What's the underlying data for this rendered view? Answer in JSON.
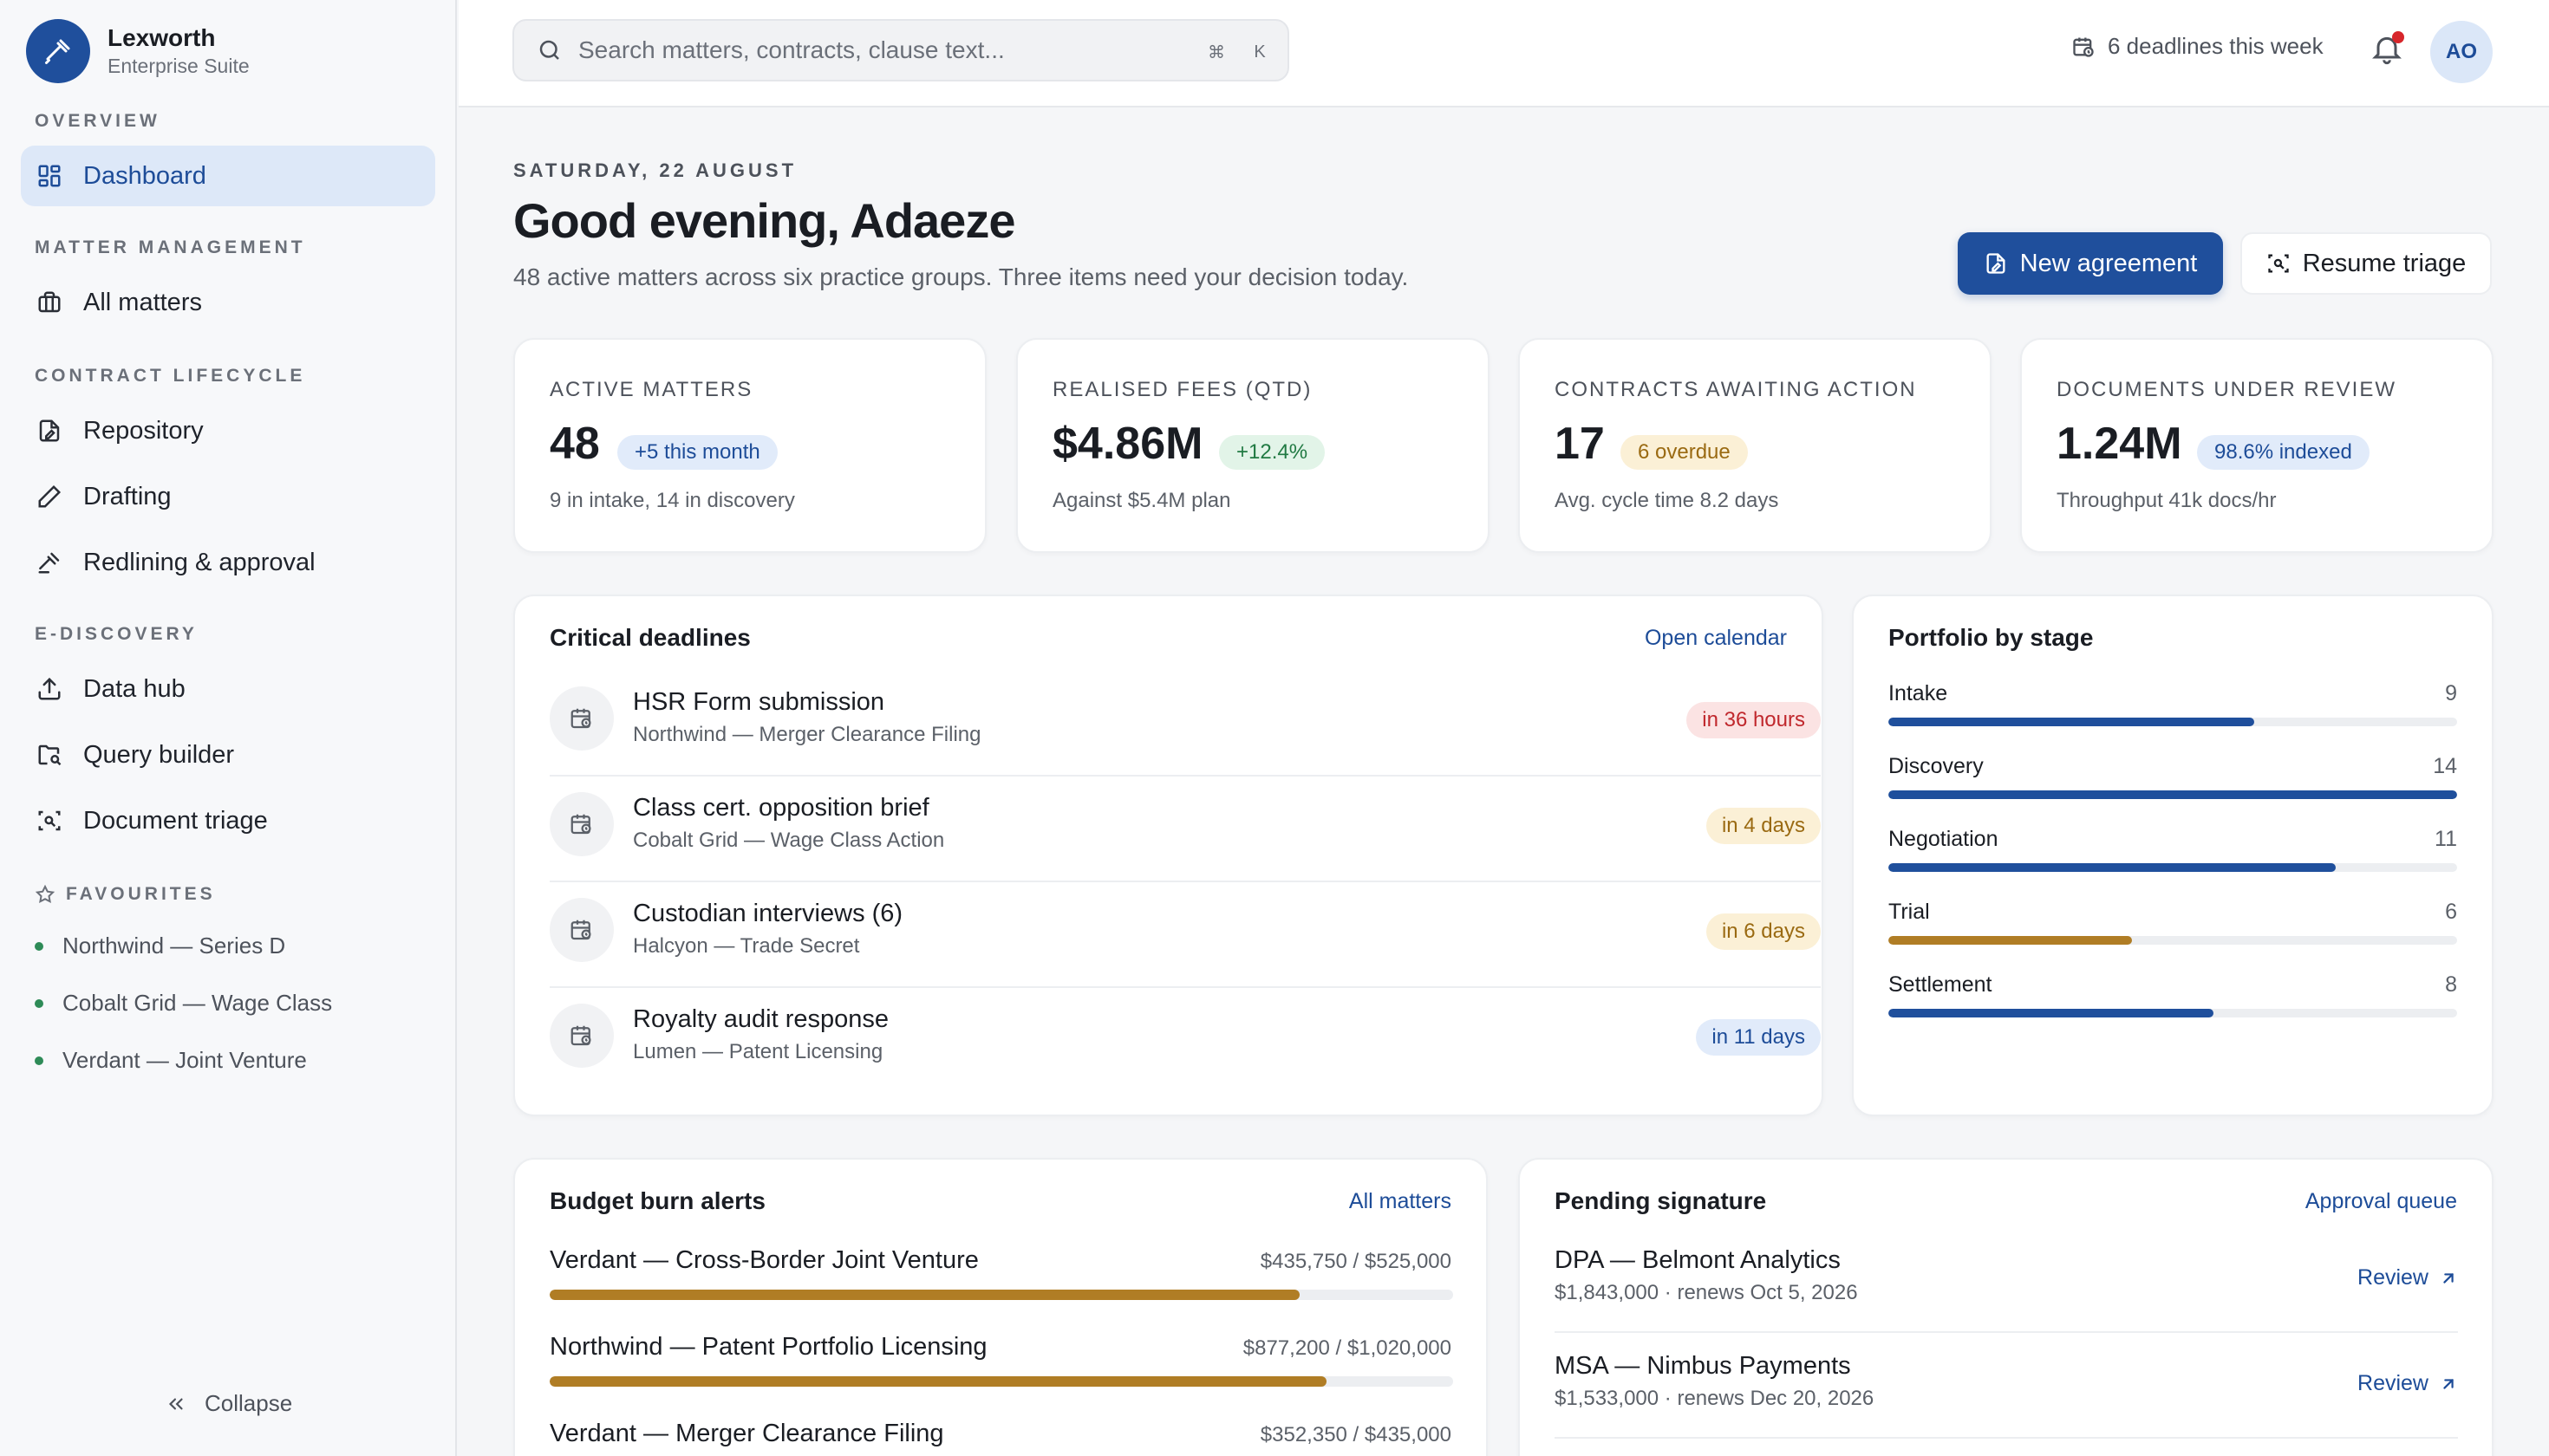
{
  "brand": {
    "name": "Lexworth",
    "subtitle": "Enterprise Suite"
  },
  "sidebar": {
    "sections": [
      {
        "label": "OVERVIEW",
        "items": [
          {
            "label": "Dashboard",
            "icon": "grid-icon",
            "active": true
          }
        ]
      },
      {
        "label": "MATTER MANAGEMENT",
        "items": [
          {
            "label": "All matters",
            "icon": "briefcase-icon"
          }
        ]
      },
      {
        "label": "CONTRACT LIFECYCLE",
        "items": [
          {
            "label": "Repository",
            "icon": "file-edit-icon"
          },
          {
            "label": "Drafting",
            "icon": "pen-icon"
          },
          {
            "label": "Redlining & approval",
            "icon": "gavel-icon"
          }
        ]
      },
      {
        "label": "E-DISCOVERY",
        "items": [
          {
            "label": "Data hub",
            "icon": "upload-icon"
          },
          {
            "label": "Query builder",
            "icon": "folder-search-icon"
          },
          {
            "label": "Document triage",
            "icon": "scan-icon"
          }
        ]
      }
    ],
    "favourites_label": "FAVOURITES",
    "favourites": [
      "Northwind — Series D",
      "Cobalt Grid — Wage Class",
      "Verdant — Joint Venture"
    ],
    "collapse_label": "Collapse"
  },
  "topbar": {
    "search_placeholder": "Search matters, contracts, clause text...",
    "kbd_cmd": "⌘",
    "kbd_key": "K",
    "deadlines_label": "6 deadlines this week",
    "avatar_initials": "AO"
  },
  "header": {
    "date": "SATURDAY, 22 AUGUST",
    "greeting": "Good evening, Adaeze",
    "subtitle": "48 active matters across six practice groups. Three items need your decision today.",
    "primary_button": "New agreement",
    "secondary_button": "Resume triage"
  },
  "kpis": [
    {
      "label": "ACTIVE MATTERS",
      "value": "48",
      "badge": "+5 this month",
      "badge_tone": "blue",
      "foot": "9 in intake, 14 in discovery"
    },
    {
      "label": "REALISED FEES (QTD)",
      "value": "$4.86M",
      "badge": "+12.4%",
      "badge_tone": "green",
      "foot": "Against $5.4M plan"
    },
    {
      "label": "CONTRACTS AWAITING ACTION",
      "value": "17",
      "badge": "6 overdue",
      "badge_tone": "amber",
      "foot": "Avg. cycle time 8.2 days"
    },
    {
      "label": "DOCUMENTS UNDER REVIEW",
      "value": "1.24M",
      "badge": "98.6% indexed",
      "badge_tone": "blue",
      "foot": "Throughput 41k docs/hr"
    }
  ],
  "deadlines": {
    "title": "Critical deadlines",
    "link": "Open calendar",
    "items": [
      {
        "title": "HSR Form submission",
        "sub": "Northwind — Merger Clearance Filing",
        "due": "in 36 hours",
        "tone": "red"
      },
      {
        "title": "Class cert. opposition brief",
        "sub": "Cobalt Grid — Wage Class Action",
        "due": "in 4 days",
        "tone": "amber"
      },
      {
        "title": "Custodian interviews (6)",
        "sub": "Halcyon — Trade Secret",
        "due": "in 6 days",
        "tone": "amber"
      },
      {
        "title": "Royalty audit response",
        "sub": "Lumen — Patent Licensing",
        "due": "in 11 days",
        "tone": "blue"
      }
    ]
  },
  "portfolio": {
    "title": "Portfolio by stage",
    "stages": [
      {
        "name": "Intake",
        "count": "9",
        "fraction": 0.643,
        "color": "#1f4f9c"
      },
      {
        "name": "Discovery",
        "count": "14",
        "fraction": 1.0,
        "color": "#1f4f9c"
      },
      {
        "name": "Negotiation",
        "count": "11",
        "fraction": 0.786,
        "color": "#1f4f9c"
      },
      {
        "name": "Trial",
        "count": "6",
        "fraction": 0.429,
        "color": "#b07d25"
      },
      {
        "name": "Settlement",
        "count": "8",
        "fraction": 0.571,
        "color": "#1f4f9c"
      }
    ]
  },
  "budget": {
    "title": "Budget burn alerts",
    "link": "All matters",
    "items": [
      {
        "name": "Verdant — Cross-Border Joint Venture",
        "amount": "$435,750 / $525,000",
        "fraction": 0.83
      },
      {
        "name": "Northwind — Patent Portfolio Licensing",
        "amount": "$877,200 / $1,020,000",
        "fraction": 0.86
      },
      {
        "name": "Verdant — Merger Clearance Filing",
        "amount": "$352,350 / $435,000",
        "fraction": 0.81
      }
    ]
  },
  "signature": {
    "title": "Pending signature",
    "link": "Approval queue",
    "items": [
      {
        "title": "DPA — Belmont Analytics",
        "sub": "$1,843,000 · renews Oct 5, 2026",
        "action": "Review"
      },
      {
        "title": "MSA — Nimbus Payments",
        "sub": "$1,533,000 · renews Dec 20, 2026",
        "action": "Review"
      }
    ]
  },
  "colors": {
    "accent": "#1f4f9c",
    "amber": "#b07d25",
    "badge_blue_bg": "#e1ebfa",
    "badge_blue_fg": "#1d4c98",
    "badge_green_bg": "#e2f4e8",
    "badge_green_fg": "#217a43",
    "badge_amber_bg": "#fbf0d6",
    "badge_amber_fg": "#9a6a12",
    "badge_red_bg": "#fbe3e3",
    "badge_red_fg": "#c0282d"
  }
}
